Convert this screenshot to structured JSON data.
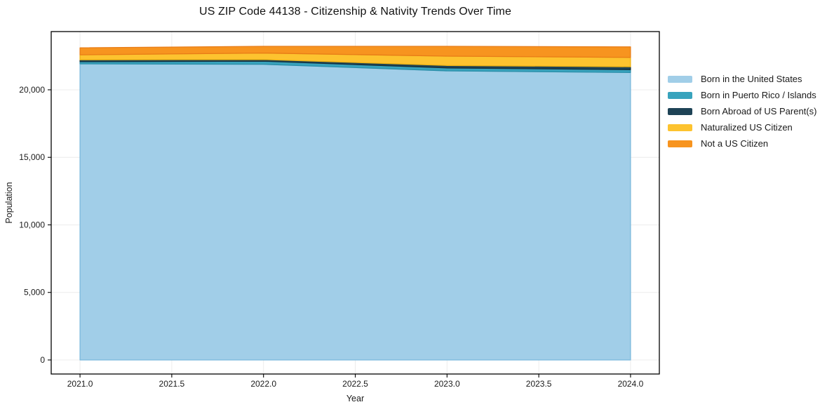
{
  "figure": {
    "title": "US ZIP Code 44138 - Citizenship & Nativity Trends Over Time"
  },
  "chart_data": {
    "type": "area",
    "stacked": true,
    "title": "US ZIP Code 44138 - Citizenship & Nativity Trends Over Time",
    "xlabel": "Year",
    "ylabel": "Population",
    "x": [
      2021,
      2022,
      2023,
      2024
    ],
    "series": [
      {
        "name": "Born in the United States",
        "color": "#a1cee8",
        "edge": "#7ab8dc",
        "values": [
          21920,
          21890,
          21400,
          21280
        ]
      },
      {
        "name": "Born in Puerto Rico / Islands",
        "color": "#38a3bd",
        "edge": "#2b8fa9",
        "values": [
          160,
          230,
          220,
          210
        ]
      },
      {
        "name": "Born Abroad of US Parent(s)",
        "color": "#1e4356",
        "edge": "#16323f",
        "values": [
          140,
          120,
          180,
          220
        ]
      },
      {
        "name": "Naturalized US Citizen",
        "color": "#fdc32f",
        "edge": "#edb214",
        "values": [
          370,
          480,
          690,
          690
        ]
      },
      {
        "name": "Not a US Citizen",
        "color": "#f7941f",
        "edge": "#e87c17",
        "values": [
          520,
          500,
          730,
          780
        ]
      }
    ],
    "totals": [
      23110,
      23220,
      23220,
      23180
    ],
    "xlim": [
      2020.843,
      2024.157
    ],
    "ylim": [
      -1040,
      24310
    ],
    "xticks": {
      "values": [
        2021.0,
        2021.5,
        2022.0,
        2022.5,
        2023.0,
        2023.5,
        2024.0
      ],
      "labels": [
        "2021.0",
        "2021.5",
        "2022.0",
        "2022.5",
        "2023.0",
        "2023.5",
        "2024.0"
      ]
    },
    "yticks": {
      "values": [
        0,
        5000,
        10000,
        15000,
        20000
      ],
      "labels": [
        "0",
        "5,000",
        "10,000",
        "15,000",
        "20,000"
      ]
    },
    "grid": true,
    "grid_color": "#ececec",
    "spine_color": "#000000",
    "tick_label_color": "#1a1a1a",
    "legend_position": "right-outside"
  }
}
